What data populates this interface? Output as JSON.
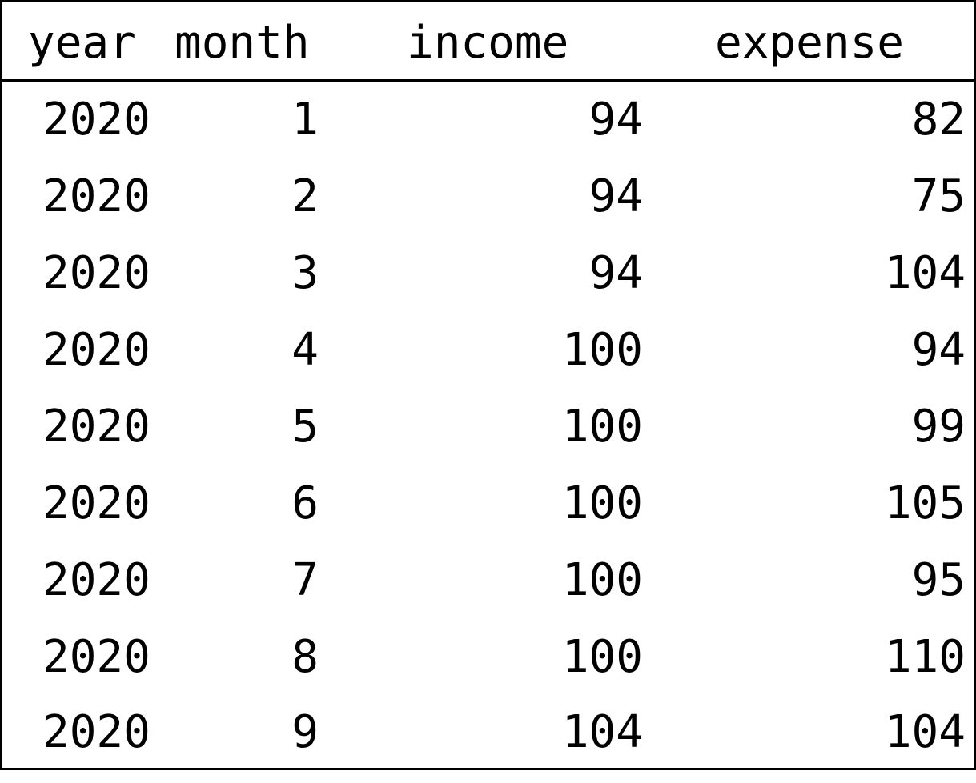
{
  "table": {
    "columns": [
      "year",
      "month",
      "income",
      "expense"
    ],
    "rows": [
      [
        "2020",
        "1",
        "94",
        "82"
      ],
      [
        "2020",
        "2",
        "94",
        "75"
      ],
      [
        "2020",
        "3",
        "94",
        "104"
      ],
      [
        "2020",
        "4",
        "100",
        "94"
      ],
      [
        "2020",
        "5",
        "100",
        "99"
      ],
      [
        "2020",
        "6",
        "100",
        "105"
      ],
      [
        "2020",
        "7",
        "100",
        "95"
      ],
      [
        "2020",
        "8",
        "100",
        "110"
      ],
      [
        "2020",
        "9",
        "104",
        "104"
      ]
    ]
  }
}
